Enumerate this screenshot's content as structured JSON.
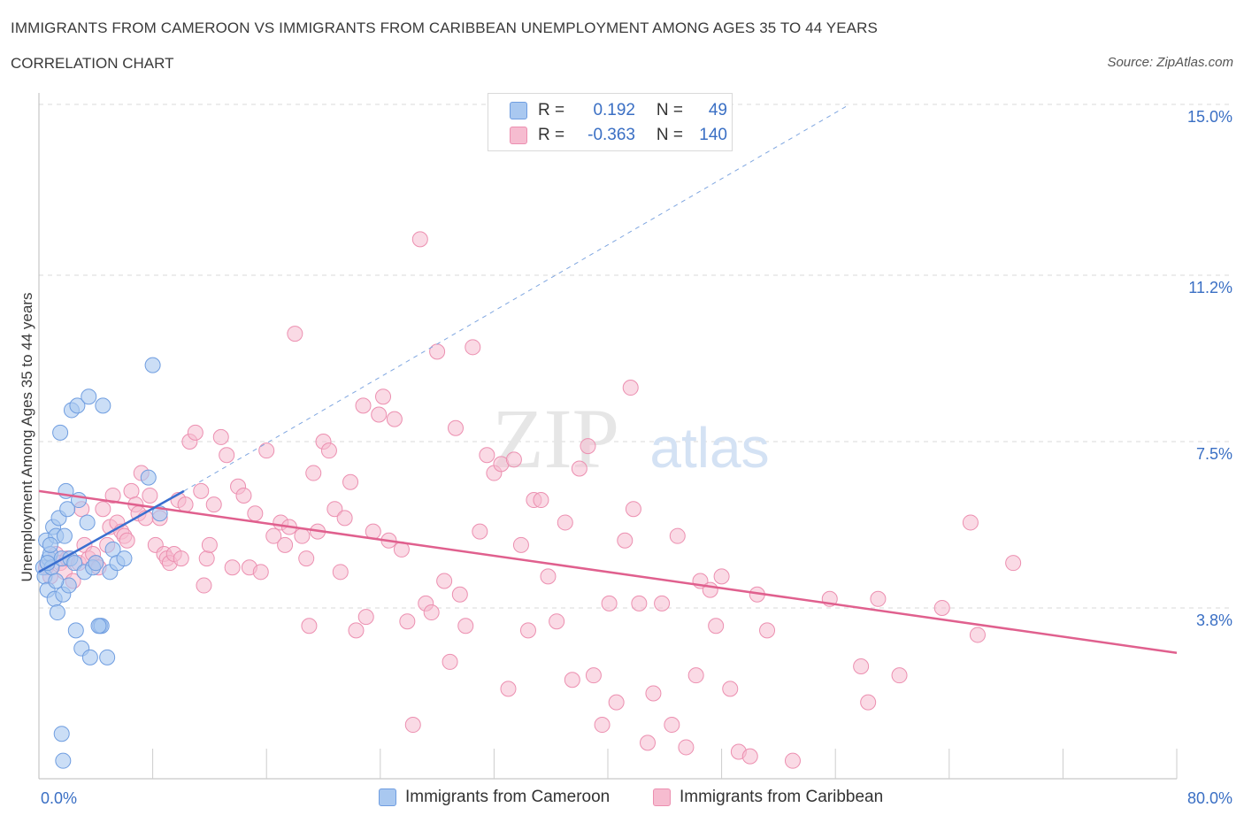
{
  "title": "IMMIGRANTS FROM CAMEROON VS IMMIGRANTS FROM CARIBBEAN UNEMPLOYMENT AMONG AGES 35 TO 44 YEARS",
  "subtitle": "CORRELATION CHART",
  "source": "Source: ZipAtlas.com",
  "watermark": {
    "zip": "ZIP",
    "atlas": "atlas"
  },
  "colors": {
    "cameroon_fill": "#a9c8f0",
    "cameroon_stroke": "#6f9de0",
    "cameroon_line": "#3a6fd0",
    "caribbean_fill": "#f6bcd0",
    "caribbean_stroke": "#ec8fb0",
    "caribbean_line": "#e0608e",
    "accent_text": "#3a6fc4",
    "grid": "#d8d8d8"
  },
  "legend": {
    "rows": [
      {
        "r_label": "R =",
        "r_value": "0.192",
        "n_label": "N =",
        "n_value": "49"
      },
      {
        "r_label": "R =",
        "r_value": "-0.363",
        "n_label": "N =",
        "n_value": "140"
      }
    ]
  },
  "bottom_legend": {
    "cameroon": "Immigrants from Cameroon",
    "caribbean": "Immigrants from Caribbean"
  },
  "chart_data": {
    "type": "scatter",
    "title": "IMMIGRANTS FROM CAMEROON VS IMMIGRANTS FROM CARIBBEAN UNEMPLOYMENT AMONG AGES 35 TO 44 YEARS",
    "xlabel": "",
    "ylabel": "Unemployment Among Ages 35 to 44 years",
    "xlim": [
      0,
      80
    ],
    "ylim": [
      0,
      15
    ],
    "x_tick_labels": [
      "0.0%",
      "80.0%"
    ],
    "y_ticks": [
      3.8,
      7.5,
      11.2,
      15.0
    ],
    "y_tick_labels": [
      "3.8%",
      "7.5%",
      "11.2%",
      "15.0%"
    ],
    "grid": true,
    "series": [
      {
        "name": "Immigrants from Cameroon",
        "trend": {
          "x": [
            0,
            10.2
          ],
          "y": [
            4.6,
            6.4
          ],
          "extended_to": {
            "x": 57,
            "y": 15
          }
        },
        "points": [
          [
            0.3,
            4.7
          ],
          [
            0.4,
            4.5
          ],
          [
            0.5,
            5.3
          ],
          [
            0.6,
            4.2
          ],
          [
            0.7,
            4.9
          ],
          [
            0.8,
            5.0
          ],
          [
            0.9,
            4.7
          ],
          [
            1.0,
            5.6
          ],
          [
            1.1,
            4.0
          ],
          [
            1.2,
            5.4
          ],
          [
            1.3,
            3.7
          ],
          [
            1.4,
            5.8
          ],
          [
            1.5,
            7.7
          ],
          [
            1.6,
            4.9
          ],
          [
            1.7,
            4.1
          ],
          [
            1.8,
            5.4
          ],
          [
            1.9,
            6.4
          ],
          [
            2.0,
            6.0
          ],
          [
            2.1,
            4.3
          ],
          [
            2.2,
            4.9
          ],
          [
            2.3,
            8.2
          ],
          [
            2.5,
            4.8
          ],
          [
            2.6,
            3.3
          ],
          [
            2.7,
            8.3
          ],
          [
            2.8,
            6.2
          ],
          [
            3.0,
            2.9
          ],
          [
            3.2,
            4.6
          ],
          [
            3.4,
            5.7
          ],
          [
            3.5,
            8.5
          ],
          [
            3.6,
            2.7
          ],
          [
            3.8,
            4.7
          ],
          [
            4.0,
            4.8
          ],
          [
            4.3,
            3.4
          ],
          [
            4.4,
            3.4
          ],
          [
            4.5,
            8.3
          ],
          [
            4.8,
            2.7
          ],
          [
            5.0,
            4.6
          ],
          [
            5.2,
            5.1
          ],
          [
            5.5,
            4.8
          ],
          [
            6.0,
            4.9
          ],
          [
            7.7,
            6.7
          ],
          [
            8.0,
            9.2
          ],
          [
            8.5,
            5.9
          ],
          [
            0.6,
            4.8
          ],
          [
            1.2,
            4.4
          ],
          [
            1.6,
            1.0
          ],
          [
            1.7,
            0.4
          ],
          [
            4.2,
            3.4
          ],
          [
            0.8,
            5.2
          ]
        ]
      },
      {
        "name": "Immigrants from Caribbean",
        "trend": {
          "x": [
            0,
            80
          ],
          "y": [
            6.4,
            2.8
          ]
        },
        "points": [
          [
            0.5,
            4.7
          ],
          [
            0.8,
            4.5
          ],
          [
            1.2,
            5.0
          ],
          [
            1.5,
            4.8
          ],
          [
            1.8,
            4.6
          ],
          [
            2.0,
            4.9
          ],
          [
            2.4,
            4.4
          ],
          [
            2.8,
            4.8
          ],
          [
            3.0,
            6.0
          ],
          [
            3.2,
            5.2
          ],
          [
            3.5,
            4.9
          ],
          [
            3.8,
            5.0
          ],
          [
            4.0,
            4.8
          ],
          [
            4.2,
            4.7
          ],
          [
            4.5,
            6.0
          ],
          [
            4.8,
            5.2
          ],
          [
            5.0,
            5.6
          ],
          [
            5.2,
            6.3
          ],
          [
            5.5,
            5.7
          ],
          [
            5.8,
            5.5
          ],
          [
            6.0,
            5.4
          ],
          [
            6.2,
            5.3
          ],
          [
            6.5,
            6.4
          ],
          [
            6.8,
            6.1
          ],
          [
            7.0,
            5.9
          ],
          [
            7.2,
            6.8
          ],
          [
            7.5,
            5.8
          ],
          [
            7.8,
            6.3
          ],
          [
            8.2,
            5.2
          ],
          [
            8.5,
            5.8
          ],
          [
            8.8,
            5.0
          ],
          [
            9.0,
            4.9
          ],
          [
            9.2,
            4.8
          ],
          [
            9.5,
            5.0
          ],
          [
            9.8,
            6.2
          ],
          [
            10.0,
            4.9
          ],
          [
            10.3,
            6.1
          ],
          [
            10.6,
            7.5
          ],
          [
            11.0,
            7.7
          ],
          [
            11.4,
            6.4
          ],
          [
            11.6,
            4.3
          ],
          [
            11.8,
            4.9
          ],
          [
            12.0,
            5.2
          ],
          [
            12.3,
            6.1
          ],
          [
            12.8,
            7.6
          ],
          [
            13.2,
            7.2
          ],
          [
            13.6,
            4.7
          ],
          [
            14.0,
            6.5
          ],
          [
            14.4,
            6.3
          ],
          [
            14.8,
            4.7
          ],
          [
            15.2,
            5.9
          ],
          [
            15.6,
            4.6
          ],
          [
            16.0,
            7.3
          ],
          [
            16.5,
            5.4
          ],
          [
            17.0,
            5.7
          ],
          [
            17.3,
            5.2
          ],
          [
            17.6,
            5.6
          ],
          [
            18.0,
            9.9
          ],
          [
            18.5,
            5.4
          ],
          [
            18.8,
            4.9
          ],
          [
            19.0,
            3.4
          ],
          [
            19.3,
            6.8
          ],
          [
            19.6,
            5.5
          ],
          [
            20.0,
            7.5
          ],
          [
            20.4,
            7.3
          ],
          [
            20.8,
            6.0
          ],
          [
            21.2,
            4.6
          ],
          [
            21.5,
            5.8
          ],
          [
            21.9,
            6.6
          ],
          [
            22.3,
            3.3
          ],
          [
            22.8,
            8.3
          ],
          [
            23.0,
            3.6
          ],
          [
            23.5,
            5.5
          ],
          [
            23.9,
            8.1
          ],
          [
            24.2,
            8.5
          ],
          [
            24.6,
            5.3
          ],
          [
            25.0,
            8.0
          ],
          [
            25.5,
            5.1
          ],
          [
            25.9,
            3.5
          ],
          [
            26.3,
            1.2
          ],
          [
            26.8,
            12.0
          ],
          [
            27.2,
            3.9
          ],
          [
            27.6,
            3.7
          ],
          [
            28.0,
            9.5
          ],
          [
            28.5,
            4.4
          ],
          [
            28.9,
            2.6
          ],
          [
            29.3,
            7.8
          ],
          [
            29.6,
            4.1
          ],
          [
            30.0,
            3.4
          ],
          [
            30.5,
            9.6
          ],
          [
            31.0,
            5.5
          ],
          [
            31.5,
            7.2
          ],
          [
            32.0,
            6.8
          ],
          [
            32.5,
            7.0
          ],
          [
            33.0,
            2.0
          ],
          [
            33.4,
            7.1
          ],
          [
            33.9,
            5.2
          ],
          [
            34.4,
            3.3
          ],
          [
            34.8,
            6.2
          ],
          [
            35.3,
            6.2
          ],
          [
            35.8,
            4.5
          ],
          [
            36.4,
            3.5
          ],
          [
            37.0,
            5.7
          ],
          [
            37.5,
            2.2
          ],
          [
            38.0,
            6.9
          ],
          [
            38.6,
            7.4
          ],
          [
            39.0,
            2.3
          ],
          [
            39.6,
            1.2
          ],
          [
            40.1,
            3.9
          ],
          [
            40.6,
            1.7
          ],
          [
            41.2,
            5.3
          ],
          [
            41.6,
            8.7
          ],
          [
            41.8,
            6.0
          ],
          [
            42.2,
            3.9
          ],
          [
            42.8,
            0.8
          ],
          [
            43.2,
            1.9
          ],
          [
            43.8,
            3.9
          ],
          [
            44.5,
            1.2
          ],
          [
            44.9,
            5.4
          ],
          [
            45.5,
            0.7
          ],
          [
            46.2,
            2.3
          ],
          [
            46.5,
            4.4
          ],
          [
            47.2,
            4.2
          ],
          [
            47.6,
            3.4
          ],
          [
            48.0,
            4.5
          ],
          [
            48.6,
            2.0
          ],
          [
            49.2,
            0.6
          ],
          [
            50.0,
            0.5
          ],
          [
            50.5,
            4.1
          ],
          [
            51.2,
            3.3
          ],
          [
            53.0,
            0.4
          ],
          [
            55.6,
            4.0
          ],
          [
            57.8,
            2.5
          ],
          [
            58.3,
            1.7
          ],
          [
            59.0,
            4.0
          ],
          [
            60.5,
            2.3
          ],
          [
            63.5,
            3.8
          ],
          [
            65.5,
            5.7
          ],
          [
            66.0,
            3.2
          ],
          [
            68.5,
            4.8
          ]
        ]
      }
    ]
  }
}
